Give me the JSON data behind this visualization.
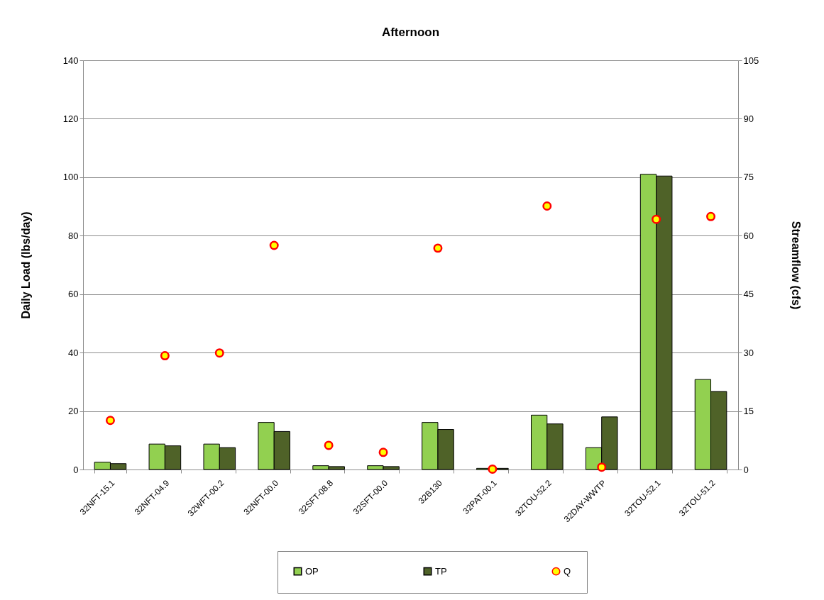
{
  "chart_data": {
    "type": "bar",
    "title": "Afternoon",
    "ylabel": "Daily Load (lbs/day)",
    "y2label": "Streamflow (cfs)",
    "categories": [
      "32NFT-15.1",
      "32NFT-04.9",
      "32WFT-00.2",
      "32NFT-00.0",
      "32SFT-08.8",
      "32SFT-00.0",
      "32B130",
      "32PAT-00.1",
      "32TOU-52.2",
      "32DAY-WWTP",
      "32TOU-52.1",
      "32TOU-51.2"
    ],
    "series": [
      {
        "name": "OP",
        "color": "#92d050",
        "values": [
          2.5,
          8.7,
          8.7,
          16.1,
          1.3,
          1.3,
          16.1,
          0.4,
          18.6,
          7.5,
          101.0,
          30.8
        ]
      },
      {
        "name": "TP",
        "color": "#4f6228",
        "values": [
          2.0,
          8.1,
          7.5,
          13.0,
          1.0,
          1.0,
          13.7,
          0.4,
          15.6,
          18.0,
          100.4,
          26.7
        ]
      },
      {
        "name": "Q",
        "type": "scatter",
        "axis": "y2",
        "color": "#ffff00",
        "values": [
          12.6,
          29.2,
          29.9,
          57.5,
          6.2,
          4.4,
          56.8,
          0.1,
          67.6,
          0.6,
          64.2,
          64.9
        ]
      }
    ],
    "ylim": [
      0,
      140
    ],
    "yticks": [
      0,
      20,
      40,
      60,
      80,
      100,
      120,
      140
    ],
    "y2lim": [
      0,
      105
    ],
    "y2ticks": [
      0,
      15,
      30,
      45,
      60,
      75,
      90,
      105
    ],
    "grid": "y",
    "legend": "bottom",
    "marker": "circle"
  }
}
